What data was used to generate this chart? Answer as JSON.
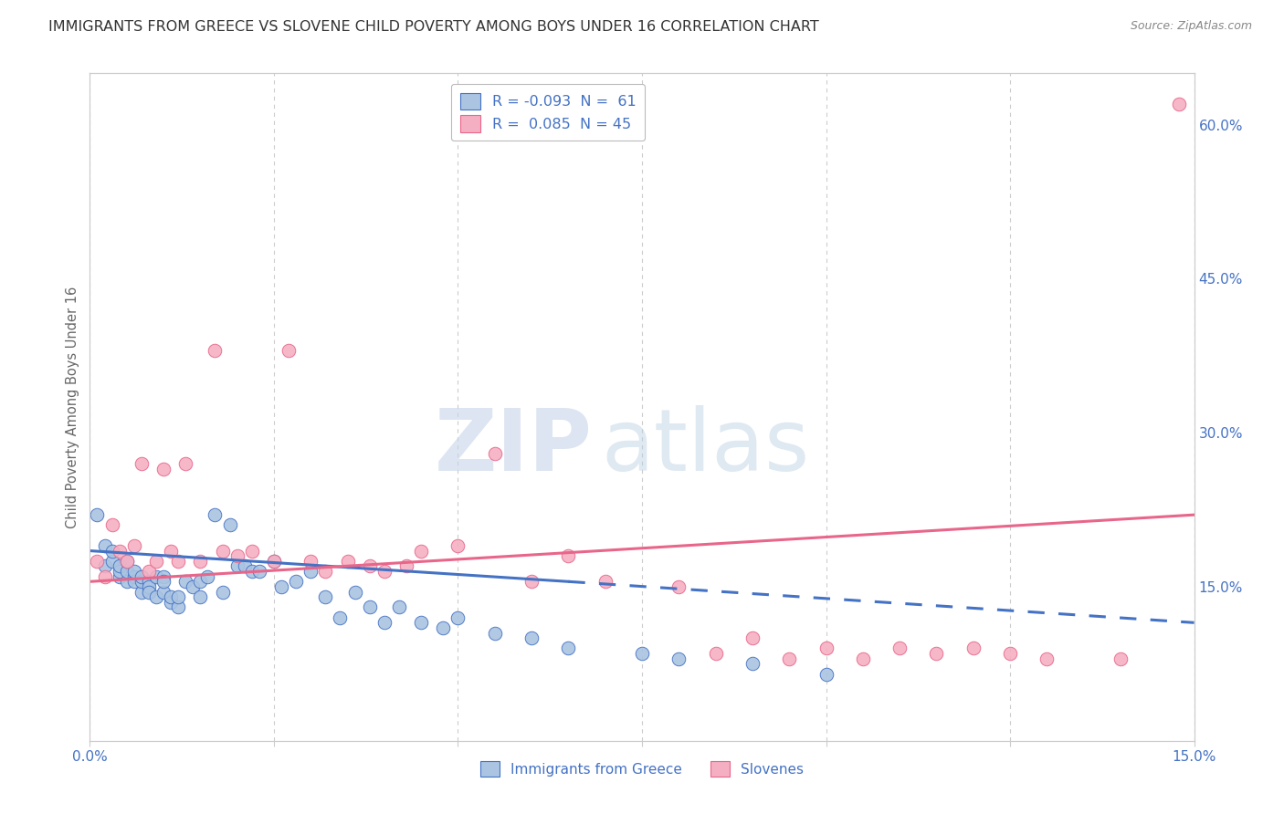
{
  "title": "IMMIGRANTS FROM GREECE VS SLOVENE CHILD POVERTY AMONG BOYS UNDER 16 CORRELATION CHART",
  "source": "Source: ZipAtlas.com",
  "ylabel": "Child Poverty Among Boys Under 16",
  "xlim": [
    0.0,
    0.15
  ],
  "ylim": [
    0.0,
    0.65
  ],
  "xtick_positions": [
    0.0,
    0.025,
    0.05,
    0.075,
    0.1,
    0.125,
    0.15
  ],
  "xtick_labels": [
    "0.0%",
    "",
    "",
    "",
    "",
    "",
    "15.0%"
  ],
  "ytick_vals_right": [
    0.6,
    0.45,
    0.3,
    0.15
  ],
  "ytick_labels_right": [
    "60.0%",
    "45.0%",
    "30.0%",
    "15.0%"
  ],
  "legend_line1": "R = -0.093  N =  61",
  "legend_line2": "R =  0.085  N = 45",
  "series1_color": "#aac4e2",
  "series2_color": "#f5afc2",
  "line1_color": "#4472c4",
  "line2_color": "#e8668a",
  "background_color": "#ffffff",
  "grid_color": "#cccccc",
  "watermark_zip": "ZIP",
  "watermark_atlas": "atlas",
  "title_color": "#333333",
  "axis_label_color": "#666666",
  "tick_color_blue": "#4472c4",
  "title_fontsize": 11.5,
  "series1_x": [
    0.001,
    0.002,
    0.002,
    0.003,
    0.003,
    0.004,
    0.004,
    0.004,
    0.005,
    0.005,
    0.005,
    0.006,
    0.006,
    0.006,
    0.007,
    0.007,
    0.007,
    0.008,
    0.008,
    0.008,
    0.009,
    0.009,
    0.01,
    0.01,
    0.01,
    0.011,
    0.011,
    0.012,
    0.012,
    0.013,
    0.014,
    0.015,
    0.015,
    0.016,
    0.017,
    0.018,
    0.019,
    0.02,
    0.021,
    0.022,
    0.023,
    0.025,
    0.026,
    0.028,
    0.03,
    0.032,
    0.034,
    0.036,
    0.038,
    0.04,
    0.042,
    0.045,
    0.048,
    0.05,
    0.055,
    0.06,
    0.065,
    0.075,
    0.08,
    0.09,
    0.1
  ],
  "series1_y": [
    0.22,
    0.17,
    0.19,
    0.175,
    0.185,
    0.16,
    0.165,
    0.17,
    0.155,
    0.165,
    0.175,
    0.16,
    0.155,
    0.165,
    0.145,
    0.155,
    0.16,
    0.155,
    0.15,
    0.145,
    0.14,
    0.16,
    0.16,
    0.145,
    0.155,
    0.135,
    0.14,
    0.13,
    0.14,
    0.155,
    0.15,
    0.14,
    0.155,
    0.16,
    0.22,
    0.145,
    0.21,
    0.17,
    0.17,
    0.165,
    0.165,
    0.175,
    0.15,
    0.155,
    0.165,
    0.14,
    0.12,
    0.145,
    0.13,
    0.115,
    0.13,
    0.115,
    0.11,
    0.12,
    0.105,
    0.1,
    0.09,
    0.085,
    0.08,
    0.075,
    0.065
  ],
  "series2_x": [
    0.001,
    0.002,
    0.003,
    0.004,
    0.005,
    0.006,
    0.007,
    0.008,
    0.009,
    0.01,
    0.011,
    0.012,
    0.013,
    0.015,
    0.017,
    0.018,
    0.02,
    0.022,
    0.025,
    0.027,
    0.03,
    0.032,
    0.035,
    0.038,
    0.04,
    0.043,
    0.045,
    0.05,
    0.055,
    0.06,
    0.065,
    0.07,
    0.08,
    0.085,
    0.09,
    0.095,
    0.1,
    0.105,
    0.11,
    0.115,
    0.12,
    0.125,
    0.13,
    0.14,
    0.148
  ],
  "series2_y": [
    0.175,
    0.16,
    0.21,
    0.185,
    0.175,
    0.19,
    0.27,
    0.165,
    0.175,
    0.265,
    0.185,
    0.175,
    0.27,
    0.175,
    0.38,
    0.185,
    0.18,
    0.185,
    0.175,
    0.38,
    0.175,
    0.165,
    0.175,
    0.17,
    0.165,
    0.17,
    0.185,
    0.19,
    0.28,
    0.155,
    0.18,
    0.155,
    0.15,
    0.085,
    0.1,
    0.08,
    0.09,
    0.08,
    0.09,
    0.085,
    0.09,
    0.085,
    0.08,
    0.08,
    0.62
  ],
  "trend1_x0": 0.0,
  "trend1_y0": 0.185,
  "trend1_x1": 0.065,
  "trend1_y1": 0.155,
  "trend1_dash_x0": 0.065,
  "trend1_dash_y0": 0.155,
  "trend1_dash_x1": 0.15,
  "trend1_dash_y1": 0.115,
  "trend2_x0": 0.0,
  "trend2_y0": 0.155,
  "trend2_x1": 0.15,
  "trend2_y1": 0.22
}
